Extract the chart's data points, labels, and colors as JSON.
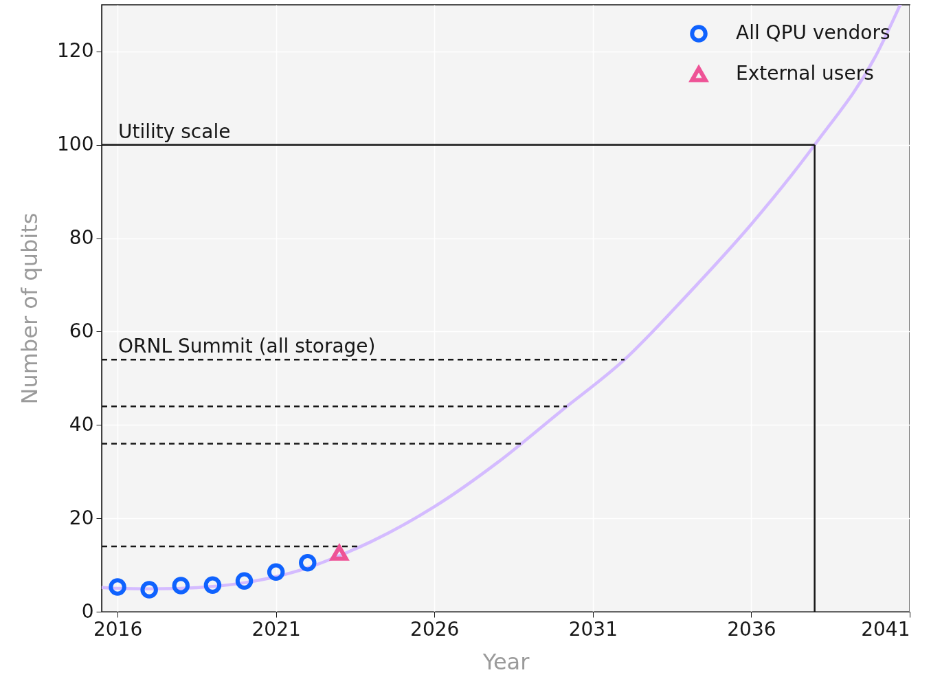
{
  "chart_data": {
    "type": "scatter",
    "xlabel": "Year",
    "ylabel": "Number of qubits",
    "xlim": [
      2015.5,
      2041
    ],
    "xticks": [
      2016,
      2021,
      2026,
      2031,
      2036,
      2041
    ],
    "ylim": [
      0,
      130
    ],
    "yticks": [
      0,
      20,
      40,
      60,
      80,
      100,
      120
    ],
    "grid": true,
    "legend": "top right",
    "series": [
      {
        "type": "line",
        "color": "#d4bbff",
        "marker": "none",
        "x": [
          2015.5,
          2016,
          2017,
          2018,
          2019,
          2020,
          2021,
          2022,
          2023,
          2024,
          2026,
          2028,
          2030,
          2032,
          2034,
          2036,
          2038,
          2040,
          2040.7
        ],
        "values": [
          5.2,
          5.0,
          4.9,
          5.0,
          5.4,
          6.2,
          7.5,
          9.4,
          12.0,
          15.0,
          22.5,
          32,
          43,
          54,
          68,
          83,
          100,
          120,
          130
        ]
      },
      {
        "name": "All QPU vendors",
        "type": "scatter",
        "marker": "circle",
        "color": "#0f62fe",
        "x": [
          2016,
          2017,
          2018,
          2019,
          2020,
          2021,
          2022
        ],
        "values": [
          5.3,
          4.7,
          5.6,
          5.7,
          6.6,
          8.5,
          10.5
        ]
      },
      {
        "name": "External users",
        "type": "scatter",
        "marker": "triangle",
        "color": "#ee5396",
        "x": [
          2023
        ],
        "values": [
          12.6
        ]
      }
    ],
    "ref_lines": [
      {
        "axis": "y",
        "value": 100,
        "label": "Utility scale",
        "line_style": "solid",
        "color": "#161616"
      },
      {
        "axis": "x",
        "value": 2038,
        "line_style": "solid",
        "color": "#161616"
      },
      {
        "axis": "y",
        "value": 54,
        "label": "ORNL Summit (all storage)",
        "line_style": "dashed",
        "color": "#161616"
      },
      {
        "axis": "y",
        "value": 44,
        "line_style": "dashed",
        "color": "#161616"
      },
      {
        "axis": "y",
        "value": 36,
        "line_style": "dashed",
        "color": "#161616"
      },
      {
        "axis": "y",
        "value": 14,
        "line_style": "dashed",
        "color": "#161616"
      }
    ]
  }
}
